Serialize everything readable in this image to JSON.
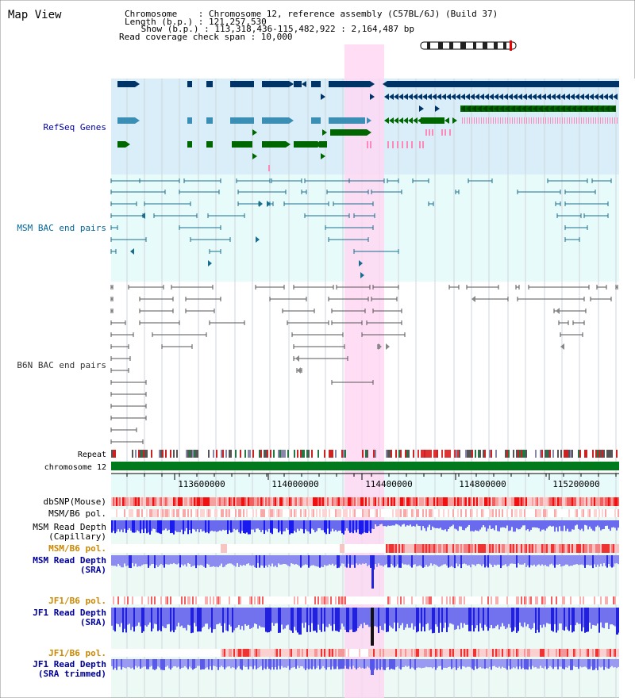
{
  "view": {
    "title": "Map View",
    "header": {
      "chromosome_line": "Chromosome    : Chromosome 12, reference assembly (C57BL/6J) (Build 37)",
      "length_line": "Length (b.p.) : 121,257,530",
      "show_line": " Show (b.p.) : 113,318,436-115,482,922 : 2,164,487 bp",
      "coverage_line": "Read coverage check span : 10,000"
    },
    "track_labels": {
      "refseq": "RefSeq Genes",
      "msm_bac": "MSM BAC end pairs",
      "b6n_bac": "B6N BAC end pairs",
      "repeat": "Repeat",
      "chromosome": "chromosome 12",
      "dbsnp": "dbSNP(Mouse)",
      "msm_b6_pol_1": "MSM/B6 pol.",
      "msm_read_depth_cap": "MSM Read Depth",
      "capillary": "(Capillary)",
      "msm_b6_pol_2": "MSM/B6 pol.",
      "msm_read_depth_sra": "MSM Read Depth",
      "sra_1": "(SRA)",
      "jf1_b6_pol_1": "JF1/B6 pol.",
      "jf1_read_depth": "JF1 Read Depth",
      "sra_2": "(SRA)",
      "jf1_b6_pol_2": "JF1/B6 pol.",
      "jf1_read_depth_trim": "JF1 Read Depth",
      "sra_trimmed": "(SRA trimmed)"
    },
    "axis_ticks": [
      "113600000",
      "114000000",
      "114400000",
      "114800000",
      "115200000"
    ],
    "colors": {
      "refseq_bg": "#d9eef9",
      "msm_bg": "#e8fbfb",
      "highlight": "#ffd6f2",
      "gene_dark": "#003366",
      "gene_mid": "#3b8fb4",
      "gene_green": "#006600",
      "msm_line": "#1a6d8c",
      "b6n_line": "#555555",
      "depth_blue": "#2222dd",
      "depth_light": "#8888ee",
      "label_blue": "#000099",
      "label_orange": "#cc8800"
    }
  }
}
